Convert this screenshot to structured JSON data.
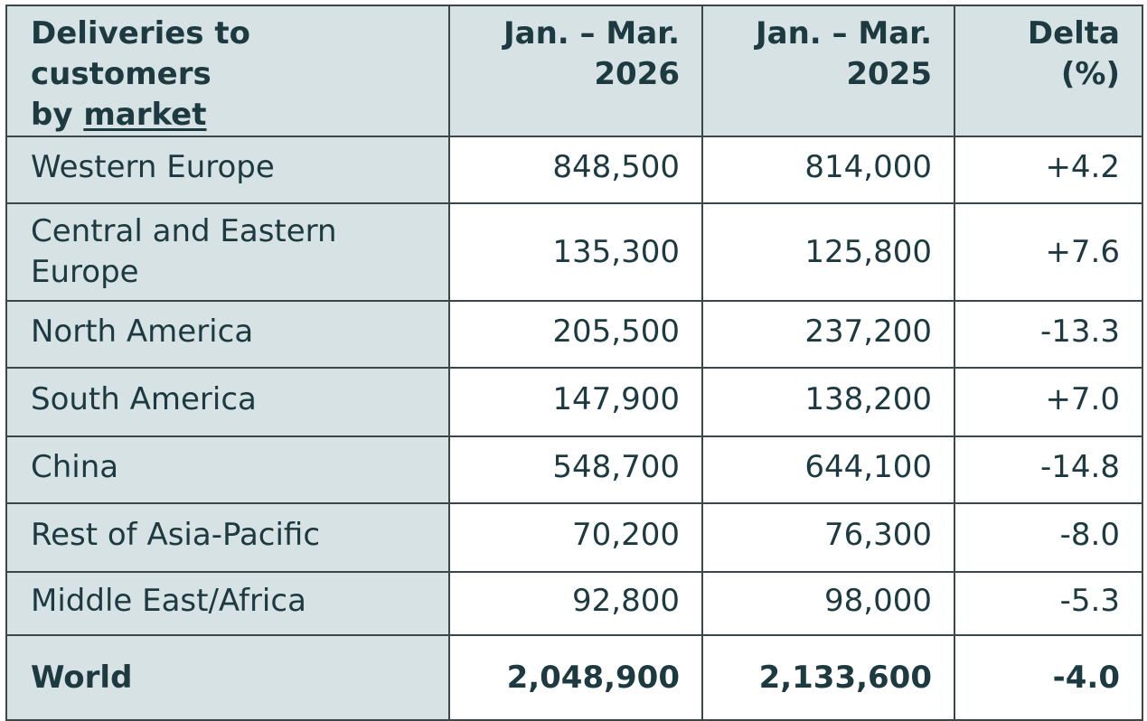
{
  "table": {
    "header": {
      "market_line1": "Deliveries to customers",
      "market_line2_prefix": "by ",
      "market_line2_link": "market",
      "col_2026_line1": "Jan. – Mar.",
      "col_2026_line2": "2026",
      "col_2025_line1": "Jan. – Mar.",
      "col_2025_line2": "2025",
      "delta_line1": "Delta",
      "delta_line2": "(%)"
    },
    "rows": [
      {
        "market": "Western Europe",
        "v2026": "848,500",
        "v2025": "814,000",
        "delta": "+4.2"
      },
      {
        "market": "Central and Eastern Europe",
        "v2026": "135,300",
        "v2025": "125,800",
        "delta": "+7.6"
      },
      {
        "market": "North America",
        "v2026": "205,500",
        "v2025": "237,200",
        "delta": "-13.3"
      },
      {
        "market": "South America",
        "v2026": "147,900",
        "v2025": "138,200",
        "delta": "+7.0"
      },
      {
        "market": "China",
        "v2026": "548,700",
        "v2025": "644,100",
        "delta": "-14.8"
      },
      {
        "market": "Rest of Asia-Pacific",
        "v2026": "70,200",
        "v2025": "76,300",
        "delta": "-8.0"
      },
      {
        "market": "Middle East/Africa",
        "v2026": "92,800",
        "v2025": "98,000",
        "delta": "-5.3"
      }
    ],
    "total": {
      "market": "World",
      "v2026": "2,048,900",
      "v2025": "2,133,600",
      "delta": "-4.0"
    }
  },
  "colors": {
    "header_bg": "#d6e2e4",
    "text": "#1c3a40",
    "border": "#3b4648"
  }
}
